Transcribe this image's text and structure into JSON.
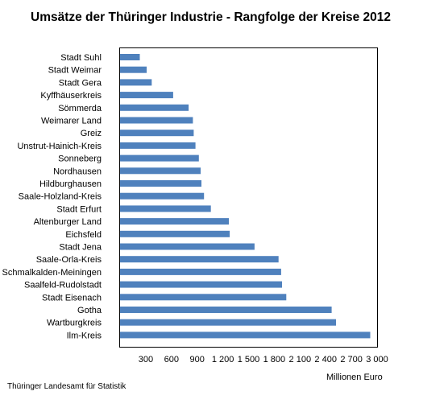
{
  "chart_data": {
    "type": "bar",
    "orientation": "horizontal",
    "title": "Umsätze der Thüringer Industrie - Rangfolge der Kreise 2012",
    "xlabel": "Millionen Euro",
    "ylabel": "",
    "source": "Thüringer Landesamt für Statistik",
    "categories": [
      "Stadt Suhl",
      "Stadt Weimar",
      "Stadt Gera",
      "Kyffhäuserkreis",
      "Sömmerda",
      "Weimarer Land",
      "Greiz",
      "Unstrut-Hainich-Kreis",
      "Sonneberg",
      "Nordhausen",
      "Hildburghausen",
      "Saale-Holzland-Kreis",
      "Stadt Erfurt",
      "Altenburger Land",
      "Eichsfeld",
      "Stadt Jena",
      "Saale-Orla-Kreis",
      "Schmalkalden-Meiningen",
      "Saalfeld-Rudolstadt",
      "Stadt Eisenach",
      "Gotha",
      "Wartburgkreis",
      "Ilm-Kreis"
    ],
    "values": [
      230,
      310,
      370,
      620,
      800,
      850,
      860,
      880,
      920,
      940,
      950,
      980,
      1060,
      1270,
      1280,
      1570,
      1850,
      1880,
      1890,
      1940,
      2470,
      2520,
      2920
    ],
    "xticks": [
      "300",
      "600",
      "900",
      "1 200",
      "1 500",
      "1 800",
      "2 100",
      "2 400",
      "2 700",
      "3 000"
    ],
    "xtick_values": [
      300,
      600,
      900,
      1200,
      1500,
      1800,
      2100,
      2400,
      2700,
      3000
    ],
    "xlim": [
      0,
      3000
    ],
    "grid": false,
    "legend": "none",
    "bar_color": "#4F81BD"
  }
}
